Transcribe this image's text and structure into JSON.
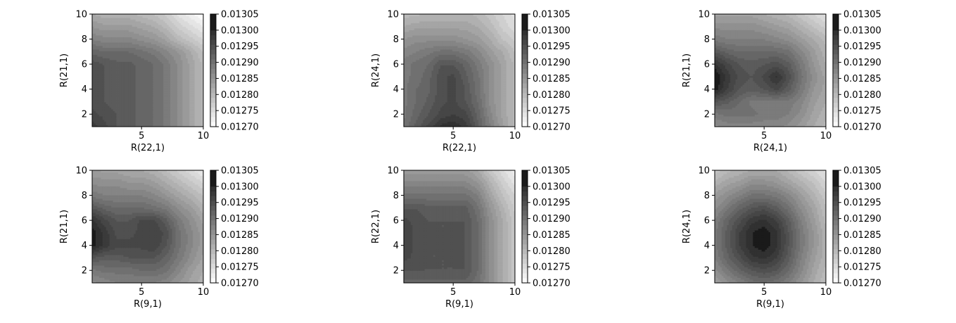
{
  "colorbar": {
    "ticks": [
      "0.01270",
      "0.01275",
      "0.01280",
      "0.01285",
      "0.01290",
      "0.01295",
      "0.01300",
      "0.01305"
    ],
    "levels": [
      0.0127,
      0.012715,
      0.01273,
      0.012745,
      0.01276,
      0.012775,
      0.01279,
      0.012805,
      0.01282,
      0.012835,
      0.01285,
      0.012865,
      0.01288,
      0.012895,
      0.01291,
      0.012925,
      0.01294,
      0.012955,
      0.01297,
      0.012985,
      0.013,
      0.01305
    ],
    "colormap": "greys",
    "range": [
      0.0127,
      0.01305
    ]
  },
  "chart_data": [
    {
      "type": "contour",
      "xlabel": "R(22,1)",
      "ylabel": "R(21,1)",
      "xlim": [
        1,
        10
      ],
      "ylim": [
        1,
        10
      ],
      "xticks": [
        "5",
        "10"
      ],
      "yticks": [
        "2",
        "4",
        "6",
        "8",
        "10"
      ],
      "colorbar_ticks": [
        "0.01270",
        "0.01275",
        "0.01280",
        "0.01285",
        "0.01290",
        "0.01295",
        "0.01300",
        "0.01305"
      ],
      "z": [
        [
          0.01298,
          0.01296,
          0.01294,
          0.01293,
          0.01292,
          0.01291,
          0.01289,
          0.01286,
          0.01283,
          0.0128
        ],
        [
          0.01296,
          0.01295,
          0.01294,
          0.01293,
          0.01292,
          0.01291,
          0.01289,
          0.01286,
          0.01283,
          0.0128
        ],
        [
          0.01295,
          0.01294,
          0.01293,
          0.01293,
          0.01292,
          0.01291,
          0.01289,
          0.01286,
          0.01283,
          0.0128
        ],
        [
          0.01295,
          0.01294,
          0.01293,
          0.01293,
          0.01292,
          0.01291,
          0.01289,
          0.01286,
          0.01283,
          0.0128
        ],
        [
          0.01295,
          0.01294,
          0.01293,
          0.01293,
          0.01292,
          0.01291,
          0.01289,
          0.01286,
          0.01283,
          0.0128
        ],
        [
          0.01295,
          0.01294,
          0.01293,
          0.01293,
          0.01292,
          0.01291,
          0.01289,
          0.01286,
          0.01283,
          0.0128
        ],
        [
          0.01292,
          0.01291,
          0.01291,
          0.01291,
          0.0129,
          0.01289,
          0.01287,
          0.01285,
          0.01282,
          0.01279
        ],
        [
          0.01288,
          0.01287,
          0.01287,
          0.01287,
          0.01286,
          0.01285,
          0.01283,
          0.0128,
          0.01278,
          0.01276
        ],
        [
          0.01285,
          0.01284,
          0.01284,
          0.01284,
          0.01283,
          0.01282,
          0.0128,
          0.01277,
          0.01275,
          0.01273
        ],
        [
          0.01282,
          0.01281,
          0.01281,
          0.01281,
          0.0128,
          0.01279,
          0.01277,
          0.01274,
          0.01272,
          0.0127
        ]
      ]
    },
    {
      "type": "contour",
      "xlabel": "R(22,1)",
      "ylabel": "R(24,1)",
      "xlim": [
        1,
        10
      ],
      "ylim": [
        1,
        10
      ],
      "xticks": [
        "5",
        "10"
      ],
      "yticks": [
        "2",
        "4",
        "6",
        "8",
        "10"
      ],
      "colorbar_ticks": [
        "0.01270",
        "0.01275",
        "0.01280",
        "0.01285",
        "0.01290",
        "0.01295",
        "0.01300",
        "0.01305"
      ],
      "z": [
        [
          0.0129,
          0.01293,
          0.01296,
          0.01299,
          0.013,
          0.01298,
          0.01293,
          0.01288,
          0.01284,
          0.0128
        ],
        [
          0.01289,
          0.01292,
          0.01294,
          0.01296,
          0.01297,
          0.01296,
          0.01292,
          0.01287,
          0.01283,
          0.0128
        ],
        [
          0.01289,
          0.01291,
          0.01293,
          0.01295,
          0.01296,
          0.01294,
          0.01291,
          0.01286,
          0.01283,
          0.0128
        ],
        [
          0.01289,
          0.01291,
          0.01292,
          0.01295,
          0.01296,
          0.01294,
          0.0129,
          0.01286,
          0.01283,
          0.0128
        ],
        [
          0.01289,
          0.0129,
          0.01292,
          0.01295,
          0.01296,
          0.01293,
          0.0129,
          0.01286,
          0.01283,
          0.0128
        ],
        [
          0.01289,
          0.0129,
          0.01291,
          0.01294,
          0.01294,
          0.01292,
          0.01289,
          0.01286,
          0.01283,
          0.0128
        ],
        [
          0.01287,
          0.01288,
          0.01289,
          0.0129,
          0.0129,
          0.01289,
          0.01287,
          0.01284,
          0.01282,
          0.01279
        ],
        [
          0.01285,
          0.01286,
          0.01286,
          0.01286,
          0.01286,
          0.01285,
          0.01284,
          0.01282,
          0.01279,
          0.01277
        ],
        [
          0.01282,
          0.01283,
          0.01283,
          0.01283,
          0.01283,
          0.01283,
          0.01282,
          0.0128,
          0.01277,
          0.01275
        ],
        [
          0.0128,
          0.0128,
          0.01281,
          0.01281,
          0.01281,
          0.01281,
          0.0128,
          0.01278,
          0.01276,
          0.01274
        ]
      ]
    },
    {
      "type": "contour",
      "xlabel": "R(24,1)",
      "ylabel": "R(21,1)",
      "xlim": [
        1,
        10
      ],
      "ylim": [
        1,
        10
      ],
      "xticks": [
        "5",
        "10"
      ],
      "yticks": [
        "2",
        "4",
        "6",
        "8",
        "10"
      ],
      "colorbar_ticks": [
        "0.01270",
        "0.01275",
        "0.01280",
        "0.01285",
        "0.01290",
        "0.01295",
        "0.01300",
        "0.01305"
      ],
      "z": [
        [
          0.01286,
          0.01287,
          0.01287,
          0.01287,
          0.01287,
          0.01287,
          0.01286,
          0.01284,
          0.01282,
          0.0128
        ],
        [
          0.01289,
          0.0129,
          0.0129,
          0.0129,
          0.01289,
          0.01289,
          0.01288,
          0.01286,
          0.01283,
          0.01281
        ],
        [
          0.01294,
          0.01293,
          0.01291,
          0.01289,
          0.01289,
          0.01289,
          0.01289,
          0.01287,
          0.01284,
          0.01282
        ],
        [
          0.01301,
          0.01297,
          0.01294,
          0.01293,
          0.01294,
          0.01296,
          0.01293,
          0.01289,
          0.01285,
          0.01283
        ],
        [
          0.01302,
          0.01298,
          0.01295,
          0.01294,
          0.01296,
          0.01299,
          0.01295,
          0.0129,
          0.01286,
          0.01283
        ],
        [
          0.01299,
          0.01296,
          0.01294,
          0.01293,
          0.01294,
          0.01295,
          0.01293,
          0.01289,
          0.01285,
          0.01282
        ],
        [
          0.01294,
          0.01292,
          0.01291,
          0.01291,
          0.01291,
          0.01291,
          0.0129,
          0.01287,
          0.01284,
          0.01281
        ],
        [
          0.01289,
          0.01288,
          0.01288,
          0.01288,
          0.01288,
          0.01287,
          0.01286,
          0.01284,
          0.01282,
          0.0128
        ],
        [
          0.01286,
          0.01286,
          0.01286,
          0.01286,
          0.01285,
          0.01284,
          0.01283,
          0.01281,
          0.01279,
          0.01277
        ],
        [
          0.01283,
          0.01283,
          0.01283,
          0.01283,
          0.01282,
          0.01281,
          0.0128,
          0.01278,
          0.01276,
          0.01274
        ]
      ]
    },
    {
      "type": "contour",
      "xlabel": "R(9,1)",
      "ylabel": "R(21,1)",
      "xlim": [
        1,
        10
      ],
      "ylim": [
        1,
        10
      ],
      "xticks": [
        "5",
        "10"
      ],
      "yticks": [
        "2",
        "4",
        "6",
        "8",
        "10"
      ],
      "colorbar_ticks": [
        "0.01270",
        "0.01275",
        "0.01280",
        "0.01285",
        "0.01290",
        "0.01295",
        "0.01300",
        "0.01305"
      ],
      "z": [
        [
          0.01286,
          0.01287,
          0.01288,
          0.01288,
          0.01288,
          0.01288,
          0.01287,
          0.01285,
          0.01283,
          0.01281
        ],
        [
          0.01289,
          0.0129,
          0.0129,
          0.0129,
          0.01291,
          0.01291,
          0.0129,
          0.01287,
          0.01284,
          0.01282
        ],
        [
          0.01294,
          0.01293,
          0.01293,
          0.01294,
          0.01294,
          0.01294,
          0.01292,
          0.01289,
          0.01286,
          0.01283
        ],
        [
          0.01301,
          0.01298,
          0.01296,
          0.01296,
          0.01296,
          0.01297,
          0.01294,
          0.0129,
          0.01287,
          0.01284
        ],
        [
          0.01301,
          0.01298,
          0.01295,
          0.01295,
          0.01296,
          0.01297,
          0.01295,
          0.0129,
          0.01287,
          0.01284
        ],
        [
          0.01299,
          0.01296,
          0.01294,
          0.01294,
          0.01296,
          0.01296,
          0.01293,
          0.01289,
          0.01286,
          0.01283
        ],
        [
          0.01294,
          0.01292,
          0.01291,
          0.01291,
          0.01291,
          0.0129,
          0.01289,
          0.01286,
          0.01284,
          0.01281
        ],
        [
          0.01289,
          0.01288,
          0.01288,
          0.01288,
          0.01288,
          0.01287,
          0.01285,
          0.01283,
          0.01281,
          0.01279
        ],
        [
          0.01286,
          0.01286,
          0.01286,
          0.01285,
          0.01285,
          0.01284,
          0.01282,
          0.0128,
          0.01278,
          0.01276
        ],
        [
          0.01284,
          0.01283,
          0.01283,
          0.01282,
          0.01282,
          0.01281,
          0.01279,
          0.01277,
          0.01275,
          0.01273
        ]
      ]
    },
    {
      "type": "contour",
      "xlabel": "R(9,1)",
      "ylabel": "R(22,1)",
      "xlim": [
        1,
        10
      ],
      "ylim": [
        1,
        10
      ],
      "xticks": [
        "5",
        "10"
      ],
      "yticks": [
        "2",
        "4",
        "6",
        "8",
        "10"
      ],
      "colorbar_ticks": [
        "0.01270",
        "0.01275",
        "0.01280",
        "0.01285",
        "0.01290",
        "0.01295",
        "0.01300",
        "0.01305"
      ],
      "z": [
        [
          0.01292,
          0.01292,
          0.01292,
          0.01292,
          0.01292,
          0.01292,
          0.0129,
          0.01286,
          0.01282,
          0.01278
        ],
        [
          0.01294,
          0.01294,
          0.01294,
          0.01294,
          0.01294,
          0.01294,
          0.01291,
          0.01286,
          0.01282,
          0.01278
        ],
        [
          0.01296,
          0.01295,
          0.01294,
          0.01294,
          0.01294,
          0.01294,
          0.01291,
          0.01286,
          0.01282,
          0.01278
        ],
        [
          0.01297,
          0.01295,
          0.01294,
          0.01294,
          0.01295,
          0.01294,
          0.01291,
          0.01286,
          0.01282,
          0.01278
        ],
        [
          0.01297,
          0.01295,
          0.01294,
          0.01294,
          0.01294,
          0.01294,
          0.01291,
          0.01286,
          0.01282,
          0.01278
        ],
        [
          0.01296,
          0.01295,
          0.01294,
          0.01294,
          0.01294,
          0.01294,
          0.01291,
          0.01286,
          0.01282,
          0.01278
        ],
        [
          0.01294,
          0.01294,
          0.01293,
          0.01293,
          0.01293,
          0.01293,
          0.0129,
          0.01285,
          0.01281,
          0.01277
        ],
        [
          0.0129,
          0.0129,
          0.0129,
          0.0129,
          0.0129,
          0.0129,
          0.01288,
          0.01283,
          0.01279,
          0.01276
        ],
        [
          0.01287,
          0.01287,
          0.01287,
          0.01287,
          0.01287,
          0.01287,
          0.01285,
          0.01281,
          0.01277,
          0.01274
        ],
        [
          0.01284,
          0.01284,
          0.01284,
          0.01284,
          0.01284,
          0.01284,
          0.01282,
          0.01278,
          0.01275,
          0.01272
        ]
      ]
    },
    {
      "type": "contour",
      "xlabel": "R(9,1)",
      "ylabel": "R(24,1)",
      "xlim": [
        1,
        10
      ],
      "ylim": [
        1,
        10
      ],
      "xticks": [
        "5",
        "10"
      ],
      "yticks": [
        "2",
        "4",
        "6",
        "8",
        "10"
      ],
      "colorbar_ticks": [
        "0.01270",
        "0.01275",
        "0.01280",
        "0.01285",
        "0.01290",
        "0.01295",
        "0.01300",
        "0.01305"
      ],
      "z": [
        [
          0.01283,
          0.01286,
          0.01288,
          0.0129,
          0.01291,
          0.0129,
          0.01288,
          0.01285,
          0.01282,
          0.01279
        ],
        [
          0.01286,
          0.01289,
          0.01292,
          0.01294,
          0.01295,
          0.01294,
          0.01291,
          0.01287,
          0.01283,
          0.0128
        ],
        [
          0.01288,
          0.01292,
          0.01295,
          0.01298,
          0.01299,
          0.01297,
          0.01293,
          0.01288,
          0.01284,
          0.01281
        ],
        [
          0.01289,
          0.01293,
          0.01297,
          0.013,
          0.01301,
          0.01299,
          0.01294,
          0.01289,
          0.01285,
          0.01281
        ],
        [
          0.01289,
          0.01293,
          0.01297,
          0.013,
          0.01301,
          0.01299,
          0.01294,
          0.01289,
          0.01285,
          0.01281
        ],
        [
          0.01288,
          0.01292,
          0.01295,
          0.01298,
          0.01299,
          0.01297,
          0.01293,
          0.01288,
          0.01284,
          0.0128
        ],
        [
          0.01286,
          0.01289,
          0.01292,
          0.01294,
          0.01295,
          0.01293,
          0.0129,
          0.01286,
          0.01283,
          0.01279
        ],
        [
          0.01284,
          0.01286,
          0.01288,
          0.0129,
          0.0129,
          0.01289,
          0.01287,
          0.01284,
          0.01281,
          0.01278
        ],
        [
          0.01281,
          0.01283,
          0.01284,
          0.01286,
          0.01286,
          0.01285,
          0.01283,
          0.01281,
          0.01279,
          0.01276
        ],
        [
          0.01278,
          0.0128,
          0.01281,
          0.01282,
          0.01282,
          0.01282,
          0.0128,
          0.01278,
          0.01276,
          0.01274
        ]
      ]
    }
  ]
}
